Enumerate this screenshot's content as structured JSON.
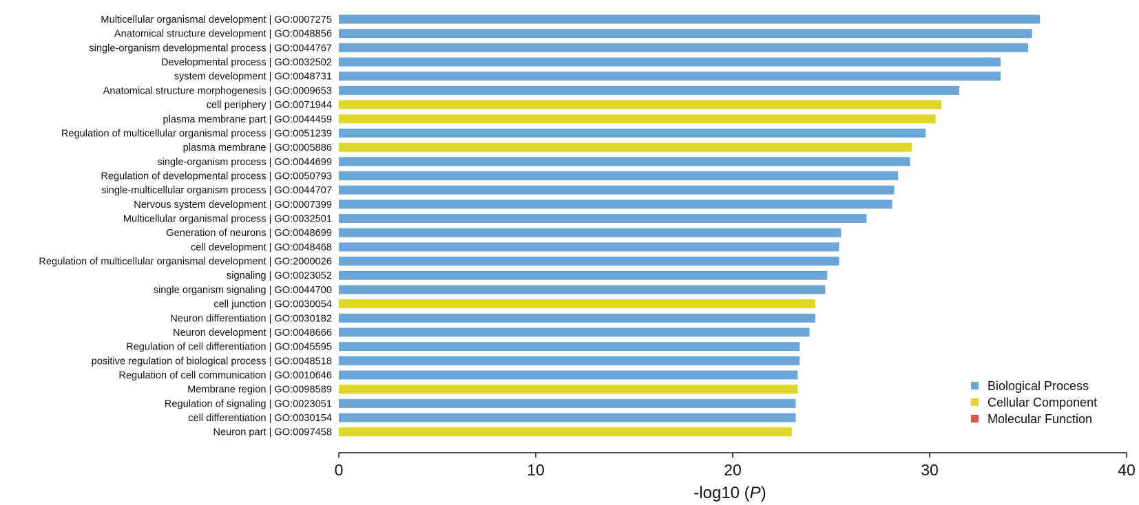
{
  "chart_data": {
    "type": "bar",
    "orientation": "horizontal",
    "title": "",
    "xlabel": "-log10 (P)",
    "xlabel_parts": [
      "-log10 (",
      "P",
      ")"
    ],
    "ylabel": "",
    "xlim": [
      0,
      40
    ],
    "x_ticks": [
      "0",
      "10",
      "20",
      "30",
      "40"
    ],
    "grid": false,
    "legend_position": "bottom-right",
    "colors": {
      "Biological Process": "#6ca6d9",
      "Cellular Component": "#e0d52a",
      "Molecular Function": "#d9584a"
    },
    "legend": [
      {
        "name": "Biological Process",
        "color": "#6ca6d9"
      },
      {
        "name": "Cellular Component",
        "color": "#e0d52a"
      },
      {
        "name": "Molecular Function",
        "color": "#d9584a"
      }
    ],
    "categories": [
      "Multicellular organismal development | GO:0007275",
      "Anatomical structure development | GO:0048856",
      "single-organism developmental process | GO:0044767",
      "Developmental process | GO:0032502",
      "system development | GO:0048731",
      "Anatomical structure morphogenesis | GO:0009653",
      "cell periphery | GO:0071944",
      "plasma membrane part | GO:0044459",
      "Regulation of multicellular organismal process | GO:0051239",
      "plasma membrane | GO:0005886",
      "single-organism process | GO:0044699",
      "Regulation of developmental process | GO:0050793",
      "single-multicellular organism process | GO:0044707",
      "Nervous system development | GO:0007399",
      "Multicellular organismal process | GO:0032501",
      "Generation of neurons | GO:0048699",
      "cell development | GO:0048468",
      "Regulation of multicellular organismal development | GO:2000026",
      "signaling | GO:0023052",
      "single organism signaling | GO:0044700",
      "cell junction | GO:0030054",
      "Neuron differentiation | GO:0030182",
      "Neuron development | GO:0048666",
      "Regulation of cell differentiation | GO:0045595",
      "positive regulation of biological process | GO:0048518",
      "Regulation of cell communication | GO:0010646",
      "Membrane region | GO:0098589",
      "Regulation of signaling | GO:0023051",
      "cell differentiation | GO:0030154",
      "Neuron part | GO:0097458"
    ],
    "values": [
      35.6,
      35.2,
      35.0,
      33.6,
      33.6,
      31.5,
      30.6,
      30.3,
      29.8,
      29.1,
      29.0,
      28.4,
      28.2,
      28.1,
      26.8,
      25.5,
      25.4,
      25.4,
      24.8,
      24.7,
      24.2,
      24.2,
      23.9,
      23.4,
      23.4,
      23.3,
      23.3,
      23.2,
      23.2,
      23.0
    ],
    "groups": [
      "Biological Process",
      "Biological Process",
      "Biological Process",
      "Biological Process",
      "Biological Process",
      "Biological Process",
      "Cellular Component",
      "Cellular Component",
      "Biological Process",
      "Cellular Component",
      "Biological Process",
      "Biological Process",
      "Biological Process",
      "Biological Process",
      "Biological Process",
      "Biological Process",
      "Biological Process",
      "Biological Process",
      "Biological Process",
      "Biological Process",
      "Cellular Component",
      "Biological Process",
      "Biological Process",
      "Biological Process",
      "Biological Process",
      "Biological Process",
      "Cellular Component",
      "Biological Process",
      "Biological Process",
      "Cellular Component"
    ]
  }
}
